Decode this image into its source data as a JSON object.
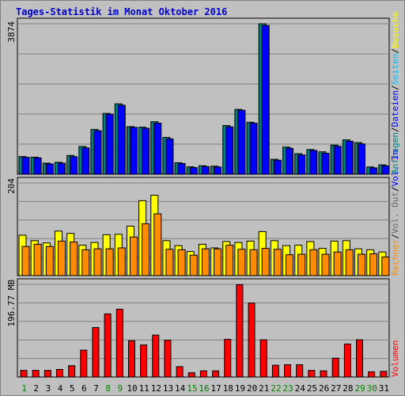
{
  "title": "Tages-Statistik im Monat Oktober 2016",
  "panels": {
    "hits": {
      "max_label": "3874",
      "legend": [
        {
          "text": "Anfragen",
          "color": "#008080"
        },
        {
          "text": "/",
          "color": "#000000"
        },
        {
          "text": "Dateien",
          "color": "#0000ff"
        },
        {
          "text": "/",
          "color": "#000000"
        },
        {
          "text": "Seiten",
          "color": "#00bfff"
        },
        {
          "text": "/",
          "color": "#000000"
        },
        {
          "text": "Besuche",
          "color": "#ffff00"
        }
      ]
    },
    "visits": {
      "max_label": "204",
      "legend": [
        {
          "text": "Rechner",
          "color": "#ff8c00"
        },
        {
          "text": "/",
          "color": "#000000"
        },
        {
          "text": "Vol. Out",
          "color": "#696969"
        },
        {
          "text": "/",
          "color": "#000000"
        },
        {
          "text": "Vol. In",
          "color": "#0000ff"
        }
      ]
    },
    "volume": {
      "max_label": "196.77 MB",
      "legend": [
        {
          "text": "Volumen",
          "color": "#ff0000"
        }
      ]
    }
  },
  "chart_data": {
    "type": "bar",
    "title": "Tages-Statistik im Monat Oktober 2016",
    "categories": [
      "1",
      "2",
      "3",
      "4",
      "5",
      "6",
      "7",
      "8",
      "9",
      "10",
      "11",
      "12",
      "13",
      "14",
      "15",
      "16",
      "17",
      "18",
      "19",
      "20",
      "21",
      "22",
      "23",
      "24",
      "25",
      "26",
      "27",
      "28",
      "29",
      "30",
      "31"
    ],
    "weekend_days": [
      "1",
      "8",
      "9",
      "15",
      "16",
      "22",
      "23",
      "29",
      "30"
    ],
    "colors": {
      "anfragen": "#008080",
      "dateien": "#0000ff",
      "seiten": "#00bfff",
      "besuche": "#ffff00",
      "rechner": "#ff8c00",
      "volumen": "#ff0000",
      "weekend_label": "#008000",
      "weekday_label": "#000000"
    },
    "panels": [
      {
        "name": "hits",
        "ylim": [
          0,
          3874
        ],
        "series": [
          {
            "name": "Anfragen",
            "values": [
              454,
              439,
              285,
              307,
              484,
              714,
              1155,
              1566,
              1813,
              1226,
              1211,
              1352,
              949,
              296,
              191,
              218,
              207,
              1253,
              1669,
              1339,
              3874,
              385,
              700,
              529,
              636,
              577,
              750,
              885,
              814,
              187,
              242
            ]
          },
          {
            "name": "Dateien",
            "values": [
              436,
              422,
              265,
              284,
              452,
              679,
              1121,
              1545,
              1776,
              1206,
              1182,
              1315,
              910,
              276,
              171,
              198,
              187,
              1219,
              1646,
              1313,
              3830,
              361,
              668,
              497,
              611,
              540,
              719,
              851,
              780,
              164,
              216
            ]
          }
        ]
      },
      {
        "name": "visits",
        "ylim": [
          0,
          204
        ],
        "series": [
          {
            "name": "Besuche",
            "values": [
              89,
              77,
              72,
              98,
              93,
              67,
              73,
              90,
              91,
              109,
              165,
              177,
              77,
              66,
              53,
              69,
              61,
              75,
              73,
              76,
              97,
              77,
              66,
              67,
              75,
              60,
              76,
              77,
              59,
              57,
              52
            ]
          },
          {
            "name": "Rechner",
            "values": [
              64,
              69,
              64,
              76,
              74,
              57,
              59,
              59,
              61,
              85,
              114,
              136,
              58,
              57,
              45,
              59,
              59,
              67,
              58,
              57,
              60,
              58,
              46,
              47,
              57,
              47,
              52,
              57,
              47,
              48,
              41
            ]
          }
        ]
      },
      {
        "name": "volume",
        "unit": "MB",
        "ylim": [
          0,
          196.77
        ],
        "series": [
          {
            "name": "Volumen",
            "values": [
              14,
              14,
              14,
              16,
              24,
              57,
              105,
              134,
              144,
              77,
              68,
              89,
              78,
              22,
              9,
              13,
              13,
              80,
              196,
              157,
              79,
              25,
              26,
              26,
              14,
              13,
              40,
              70,
              79,
              11,
              12
            ]
          }
        ]
      }
    ]
  }
}
